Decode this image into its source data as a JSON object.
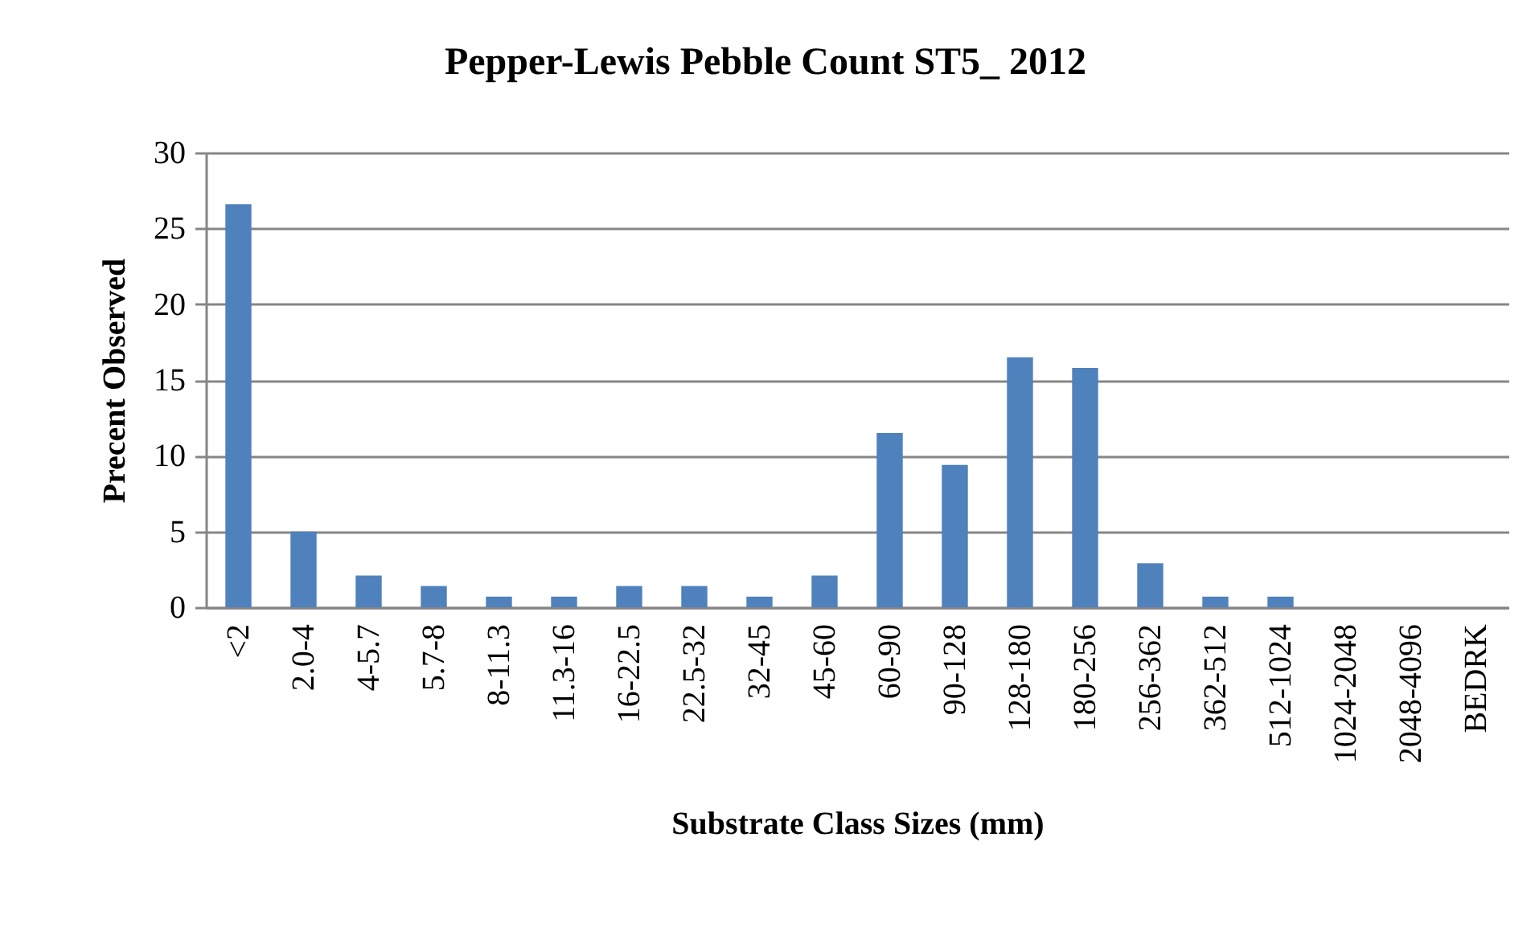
{
  "chart_data": {
    "type": "bar",
    "title": "Pepper-Lewis Pebble Count ST5_ 2012",
    "xlabel": "Substrate Class Sizes (mm)",
    "ylabel": "Precent Observed",
    "categories": [
      "<2",
      "2.0-4",
      "4-5.7",
      "5.7-8",
      "8-11.3",
      "11.3-16",
      "16-22.5",
      "22.5-32",
      "32-45",
      "45-60",
      "60-90",
      "90-128",
      "128-180",
      "180-256",
      "256-362",
      "362-512",
      "512-1024",
      "1024-2048",
      "2048-4096",
      "BEDRK"
    ],
    "values": [
      26.6,
      5.0,
      2.1,
      1.4,
      0.7,
      0.7,
      1.4,
      1.4,
      0.7,
      2.1,
      11.5,
      9.4,
      16.5,
      15.8,
      2.9,
      0.7,
      0.7,
      0,
      0,
      0
    ],
    "color": "#4f81bd",
    "ylim": [
      0,
      30
    ],
    "yticks": [
      0,
      5,
      10,
      15,
      20,
      25,
      30
    ],
    "grid": "y"
  }
}
